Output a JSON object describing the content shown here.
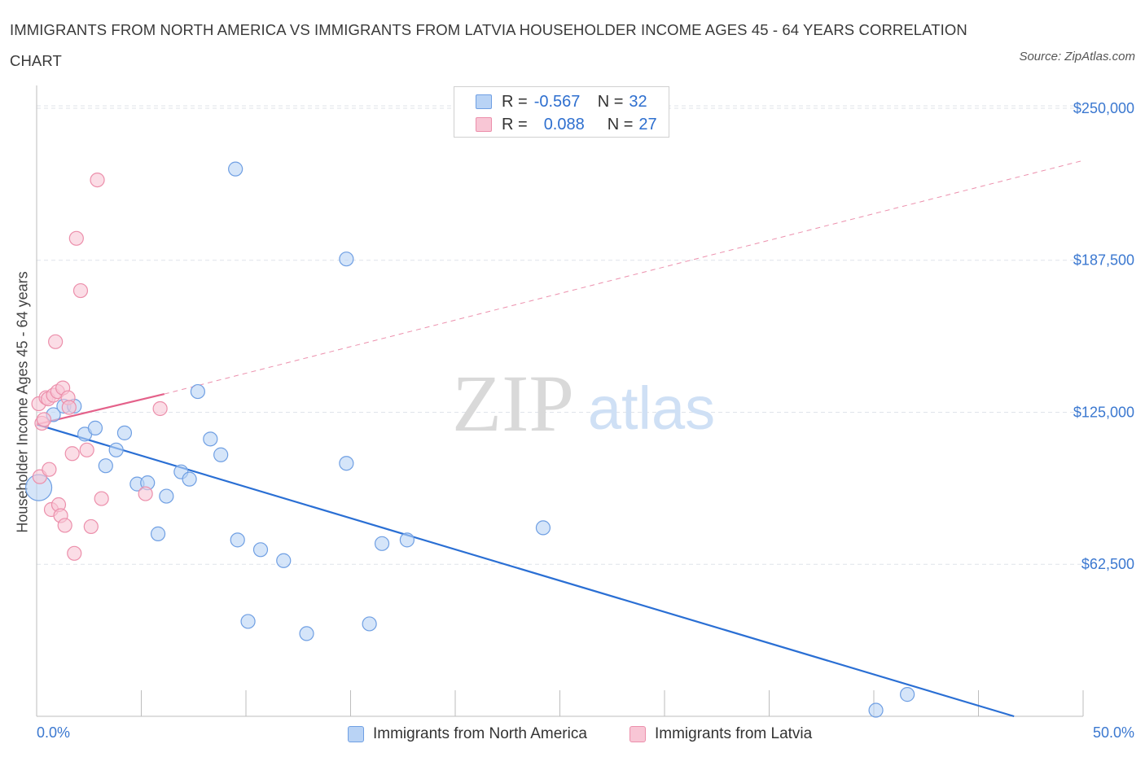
{
  "title": "IMMIGRANTS FROM NORTH AMERICA VS IMMIGRANTS FROM LATVIA HOUSEHOLDER INCOME AGES 45 - 64 YEARS CORRELATION CHART",
  "source": "Source: ZipAtlas.com",
  "watermark": {
    "zip": "ZIP",
    "atlas": "atlas"
  },
  "colors": {
    "blue_fill": "#b9d3f5",
    "blue_stroke": "#6f9fe3",
    "blue_line": "#2a6fd4",
    "pink_fill": "#f8c6d5",
    "pink_stroke": "#ec8fab",
    "pink_line": "#e4618a",
    "axis_label": "#3b78d0",
    "grid": "#dfe3ea"
  },
  "legend": {
    "rows": [
      {
        "r_label": "R =",
        "r_value": "-0.567",
        "n_label": "N =",
        "n_value": "32",
        "series": "north_america"
      },
      {
        "r_label": "R =",
        "r_value": "0.088",
        "n_label": "N =",
        "n_value": "27",
        "series": "latvia"
      }
    ]
  },
  "bottom_legend": [
    {
      "label": "Immigrants from North America",
      "series": "north_america"
    },
    {
      "label": "Immigrants from Latvia",
      "series": "latvia"
    }
  ],
  "chart_data": {
    "type": "scatter",
    "title": "IMMIGRANTS FROM NORTH AMERICA VS IMMIGRANTS FROM LATVIA HOUSEHOLDER INCOME AGES 45 - 64 YEARS CORRELATION CHART",
    "xlabel": "",
    "ylabel": "Householder Income Ages 45 - 64 years",
    "xlim": [
      0,
      50
    ],
    "ylim": [
      0,
      255000
    ],
    "x_tick_labels": [
      "0.0%",
      "50.0%"
    ],
    "y_ticks": [
      62500,
      125000,
      187500,
      250000
    ],
    "y_tick_labels": [
      "$62,500",
      "$125,000",
      "$187,500",
      "$250,000"
    ],
    "grid": true,
    "series": [
      {
        "name": "Immigrants from North America",
        "key": "north_america",
        "r": -0.567,
        "n": 32,
        "trend": {
          "x0": 0,
          "y0": 120000,
          "x1": 46.7,
          "y1": 0,
          "style": "solid"
        },
        "points": [
          {
            "x": 0.1,
            "y": 94000,
            "big": true
          },
          {
            "x": 0.8,
            "y": 124000
          },
          {
            "x": 1.3,
            "y": 127500
          },
          {
            "x": 1.8,
            "y": 127500
          },
          {
            "x": 2.3,
            "y": 116000
          },
          {
            "x": 2.8,
            "y": 118500
          },
          {
            "x": 3.3,
            "y": 103000
          },
          {
            "x": 3.8,
            "y": 109500
          },
          {
            "x": 4.2,
            "y": 116500
          },
          {
            "x": 4.8,
            "y": 95500
          },
          {
            "x": 5.3,
            "y": 96000
          },
          {
            "x": 5.8,
            "y": 75000
          },
          {
            "x": 6.2,
            "y": 90500
          },
          {
            "x": 6.9,
            "y": 100500
          },
          {
            "x": 7.3,
            "y": 97500
          },
          {
            "x": 7.7,
            "y": 133500
          },
          {
            "x": 8.3,
            "y": 114000
          },
          {
            "x": 8.8,
            "y": 107500
          },
          {
            "x": 9.5,
            "y": 225000
          },
          {
            "x": 9.6,
            "y": 72500
          },
          {
            "x": 10.1,
            "y": 39000
          },
          {
            "x": 10.7,
            "y": 68500
          },
          {
            "x": 11.8,
            "y": 64000
          },
          {
            "x": 12.9,
            "y": 34000
          },
          {
            "x": 14.8,
            "y": 188000
          },
          {
            "x": 14.8,
            "y": 104000
          },
          {
            "x": 15.9,
            "y": 38000
          },
          {
            "x": 16.5,
            "y": 71000
          },
          {
            "x": 17.7,
            "y": 72500
          },
          {
            "x": 24.2,
            "y": 77500
          },
          {
            "x": 40.1,
            "y": 2500
          },
          {
            "x": 41.6,
            "y": 9000
          }
        ]
      },
      {
        "name": "Immigrants from Latvia",
        "key": "latvia",
        "r": 0.088,
        "n": 27,
        "trend": {
          "x0": 0,
          "y0": 120000,
          "x1": 6.1,
          "y1": 132500,
          "style": "solid"
        },
        "trend_extension": {
          "x0": 6.1,
          "y0": 132500,
          "x1": 50,
          "y1": 228500,
          "style": "dashed"
        },
        "points": [
          {
            "x": 0.1,
            "y": 128500
          },
          {
            "x": 0.15,
            "y": 98500
          },
          {
            "x": 0.25,
            "y": 120500
          },
          {
            "x": 0.35,
            "y": 122000
          },
          {
            "x": 0.45,
            "y": 131000
          },
          {
            "x": 0.55,
            "y": 130500
          },
          {
            "x": 0.6,
            "y": 101500
          },
          {
            "x": 0.7,
            "y": 85000
          },
          {
            "x": 0.8,
            "y": 132000
          },
          {
            "x": 0.9,
            "y": 154000
          },
          {
            "x": 1.0,
            "y": 133500
          },
          {
            "x": 1.05,
            "y": 87000
          },
          {
            "x": 1.15,
            "y": 82500
          },
          {
            "x": 1.25,
            "y": 135000
          },
          {
            "x": 1.35,
            "y": 78500
          },
          {
            "x": 1.5,
            "y": 131000
          },
          {
            "x": 1.55,
            "y": 127000
          },
          {
            "x": 1.7,
            "y": 108000
          },
          {
            "x": 1.8,
            "y": 67000
          },
          {
            "x": 1.9,
            "y": 196500
          },
          {
            "x": 2.1,
            "y": 175000
          },
          {
            "x": 2.4,
            "y": 109500
          },
          {
            "x": 2.6,
            "y": 78000
          },
          {
            "x": 2.9,
            "y": 220500
          },
          {
            "x": 3.1,
            "y": 89500
          },
          {
            "x": 5.2,
            "y": 91500
          },
          {
            "x": 5.9,
            "y": 126500
          }
        ]
      }
    ]
  }
}
